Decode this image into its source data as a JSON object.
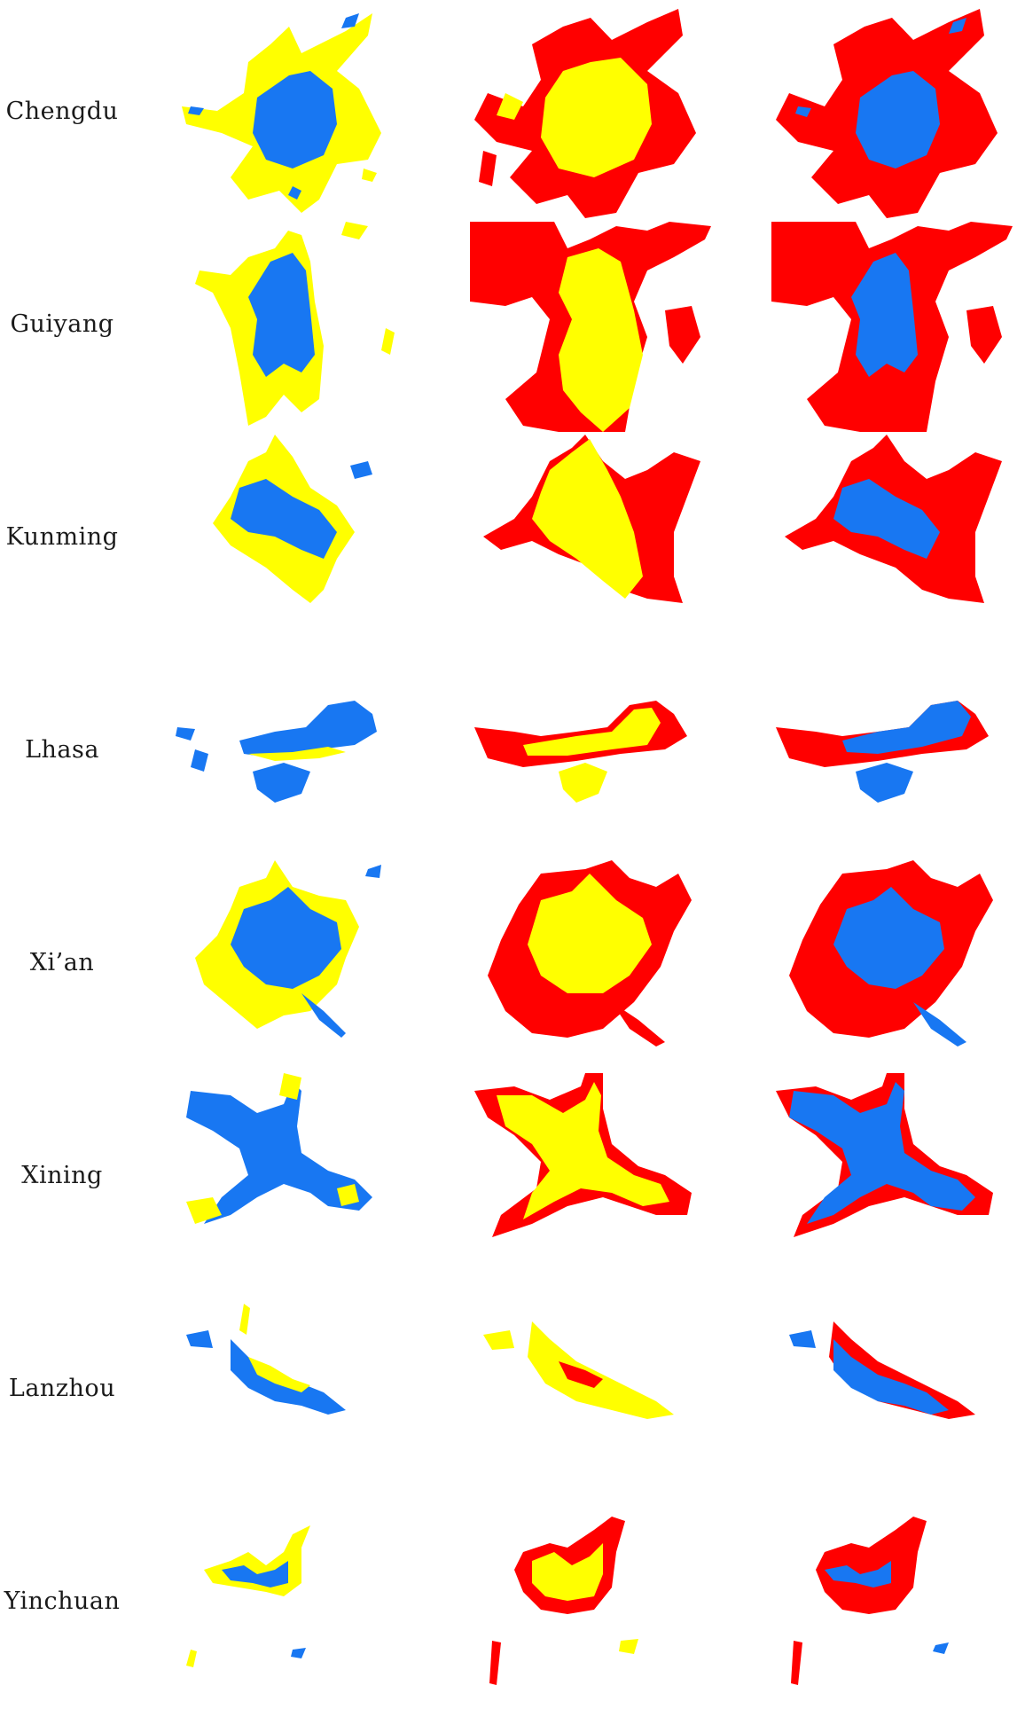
{
  "colors": {
    "blue": "#1877f2",
    "yellow": "#ffff00",
    "red": "#ff0000",
    "background": "#ffffff",
    "label": "#1a1a1a"
  },
  "rows": [
    {
      "city": "Chengdu"
    },
    {
      "city": "Guiyang"
    },
    {
      "city": "Kunming"
    },
    {
      "city": "Lhasa"
    },
    {
      "city": "Xi’an"
    },
    {
      "city": "Xining"
    },
    {
      "city": "Lanzhou"
    },
    {
      "city": "Yinchuan"
    }
  ]
}
